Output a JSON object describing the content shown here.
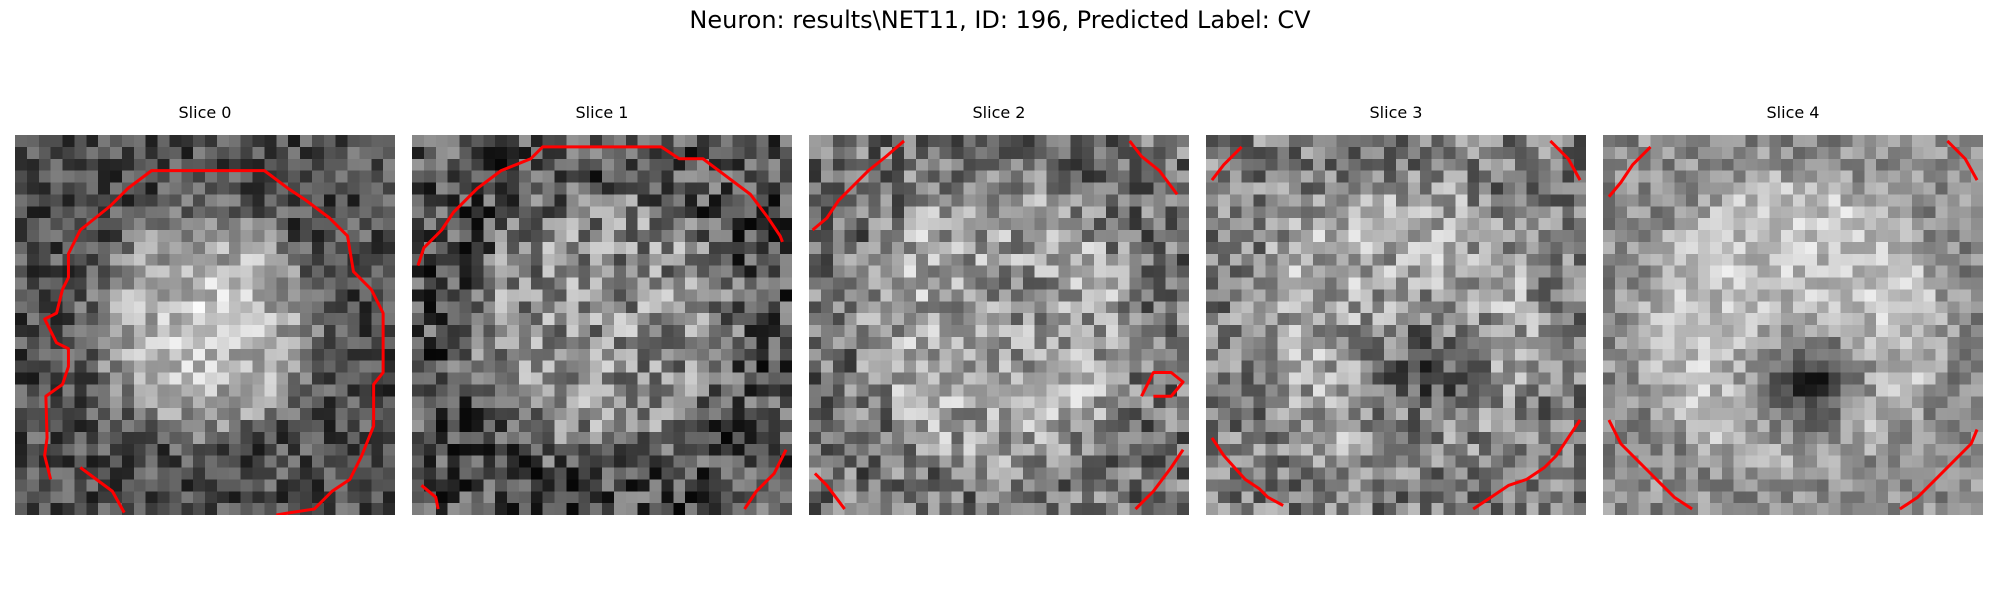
{
  "figure": {
    "title": "Neuron: results\\NET11, ID: 196, Predicted Label: CV"
  },
  "colors": {
    "contour": "#ff0000",
    "background": "#ffffff"
  },
  "colormap": "gray",
  "slices": [
    {
      "title": "Slice 0"
    },
    {
      "title": "Slice 1"
    },
    {
      "title": "Slice 2"
    },
    {
      "title": "Slice 3"
    },
    {
      "title": "Slice 4"
    }
  ]
}
